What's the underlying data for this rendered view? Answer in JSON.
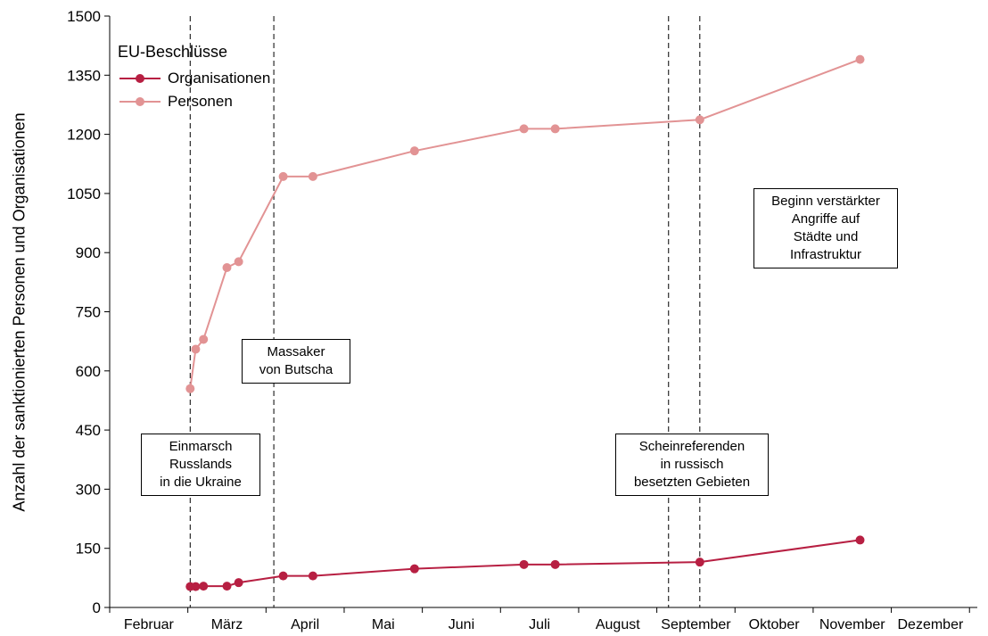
{
  "chart_data": {
    "type": "line",
    "ylabel": "Anzahl der sanktionierten Personen und Organisationen",
    "xlabel": "",
    "ylim": [
      0,
      1500
    ],
    "yticks": [
      0,
      150,
      300,
      450,
      600,
      750,
      900,
      1050,
      1200,
      1350,
      1500
    ],
    "xlim": [
      0,
      11.1
    ],
    "month_ticks": [
      {
        "label": "Februar",
        "x": 0.5
      },
      {
        "label": "März",
        "x": 1.5
      },
      {
        "label": "April",
        "x": 2.5
      },
      {
        "label": "Mai",
        "x": 3.5
      },
      {
        "label": "Juni",
        "x": 4.5
      },
      {
        "label": "Juli",
        "x": 5.5
      },
      {
        "label": "August",
        "x": 6.5
      },
      {
        "label": "September",
        "x": 7.5
      },
      {
        "label": "Oktober",
        "x": 8.5
      },
      {
        "label": "November",
        "x": 9.5
      },
      {
        "label": "Dezember",
        "x": 10.5
      }
    ],
    "legend_title": "EU-Beschlüsse",
    "legend_position": "top-left",
    "series": [
      {
        "name": "Organisationen",
        "color": "#b71f42",
        "x": [
          1.03,
          1.1,
          1.2,
          1.5,
          1.65,
          2.22,
          2.6,
          3.9,
          5.3,
          5.7,
          7.55,
          9.6
        ],
        "values": [
          53,
          53,
          54,
          54,
          63,
          80,
          80,
          98,
          109,
          109,
          115,
          171
        ]
      },
      {
        "name": "Personen",
        "color": "#e29394",
        "x": [
          1.03,
          1.1,
          1.2,
          1.5,
          1.65,
          2.22,
          2.6,
          3.9,
          5.3,
          5.7,
          7.55,
          9.6
        ],
        "values": [
          555,
          655,
          680,
          862,
          877,
          1093,
          1093,
          1158,
          1214,
          1214,
          1237,
          1390
        ]
      }
    ],
    "events": [
      {
        "x": 1.03,
        "lines": [
          "Einmarsch",
          "Russlands",
          "in die Ukraine"
        ]
      },
      {
        "x": 2.1,
        "lines": [
          "Massaker",
          "von Butscha"
        ]
      },
      {
        "x": 7.15,
        "lines": [
          "Scheinreferenden",
          "in russisch",
          "besetzten Gebieten"
        ]
      },
      {
        "x": 7.55,
        "lines": [
          "Beginn verstärkter",
          "Angriffe auf",
          "Städte und",
          "Infrastruktur"
        ]
      }
    ]
  }
}
